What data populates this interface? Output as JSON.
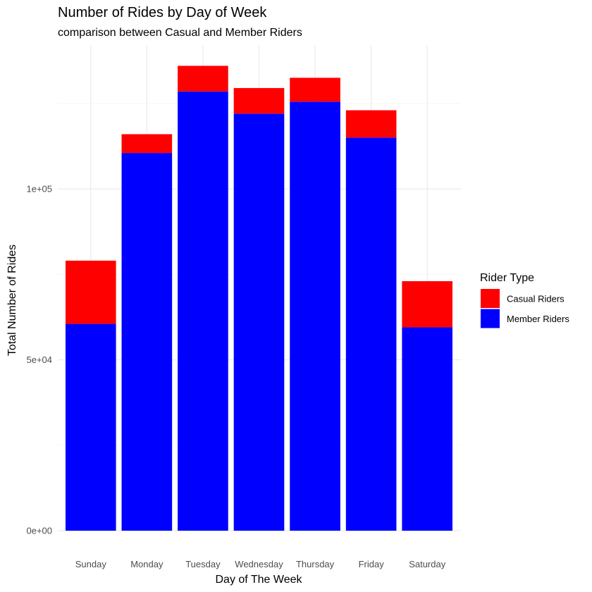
{
  "chart_data": {
    "type": "bar",
    "stacked": true,
    "title": "Number of Rides by Day of Week",
    "subtitle": "comparison between Casual and Member Riders",
    "xlabel": "Day of The Week",
    "ylabel": "Total Number of Rides",
    "categories": [
      "Sunday",
      "Monday",
      "Tuesday",
      "Wednesday",
      "Thursday",
      "Friday",
      "Saturday"
    ],
    "series": [
      {
        "name": "Member Riders",
        "color": "#0000ff",
        "values": [
          60500,
          110500,
          128500,
          122000,
          125500,
          115000,
          59500
        ]
      },
      {
        "name": "Casual Riders",
        "color": "#ff0000",
        "values": [
          18500,
          5500,
          7500,
          7500,
          7000,
          8000,
          13500
        ]
      }
    ],
    "ylim": [
      0,
      140000
    ],
    "yticks": [
      0,
      50000,
      100000
    ],
    "ytick_labels": [
      "0e+00",
      "5e+04",
      "1e+05"
    ],
    "grid": true,
    "legend": {
      "title": "Rider Type",
      "position": "right",
      "entries": [
        {
          "label": "Casual Riders",
          "color": "#ff0000"
        },
        {
          "label": "Member Riders",
          "color": "#0000ff"
        }
      ]
    }
  }
}
